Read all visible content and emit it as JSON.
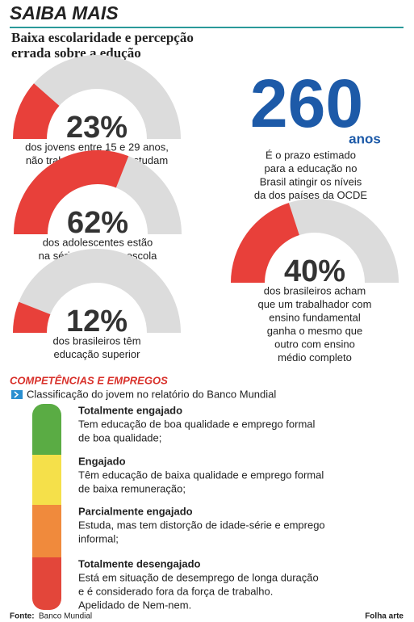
{
  "header": {
    "title": "SAIBA MAIS",
    "subtitle": [
      "Baixa escolaridade e percepção",
      "errada sobre a edução"
    ]
  },
  "gauges": [
    {
      "value": 23,
      "label": "23%",
      "text": [
        "dos jovens entre 15 e 29 anos,",
        "não trabalham e nem estudam"
      ]
    },
    {
      "value": 62,
      "label": "62%",
      "text": [
        "dos adolescentes estão",
        "na série errada na escola"
      ]
    },
    {
      "value": 12,
      "label": "12%",
      "text": [
        "dos brasileiros têm",
        "educação superior"
      ]
    },
    {
      "value": 40,
      "label": "40%",
      "text": [
        "dos brasileiros acham",
        "que um  trabalhador com",
        "ensino fundamental",
        "ganha o mesmo que",
        "outro com  ensino",
        "médio completo"
      ]
    }
  ],
  "gauge_colors": {
    "fill": "#e8403a",
    "track": "#dcdcdc"
  },
  "stat": {
    "value": "260",
    "unit": "anos",
    "text": [
      "É o prazo estimado",
      "para a educação no",
      "Brasil atingir os níveis",
      "da dos países da OCDE"
    ]
  },
  "section": {
    "title": "COMPETÊNCIAS E EMPREGOS",
    "subtitle": "Classificação do jovem no relatório do Banco Mundial",
    "levels": [
      {
        "title": "Totalmente engajado",
        "color": "#5aac44",
        "text": [
          "Tem educação de boa qualidade e emprego formal",
          "de boa qualidade;"
        ]
      },
      {
        "title": "Engajado",
        "color": "#f5e04a",
        "text": [
          "Têm educação de baixa qualidade e emprego formal",
          "de baixa remuneração;"
        ]
      },
      {
        "title": "Parcialmente engajado",
        "color": "#f08a3c",
        "text": [
          "Estuda, mas tem distorção de idade-série e emprego",
          "informal;"
        ]
      },
      {
        "title": "Totalmente desengajado",
        "color": "#e3463a",
        "text": [
          "Está em situação de desemprego de longa duração",
          "e é considerado fora da força de trabalho.",
          "Apelidado de Nem-nem."
        ]
      }
    ]
  },
  "footer": {
    "source_label": "Fonte:",
    "source": "Banco Mundial",
    "credit": "Folha arte"
  }
}
